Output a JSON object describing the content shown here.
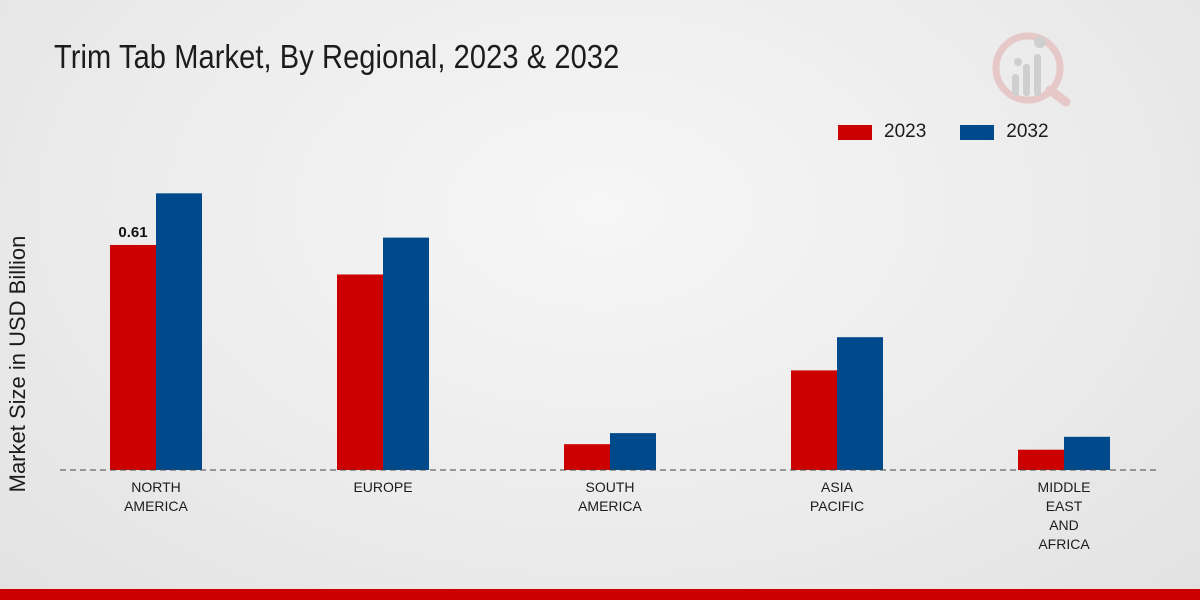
{
  "chart_data": {
    "type": "bar",
    "title": "Trim Tab Market, By Regional, 2023 & 2032",
    "ylabel": "Market Size in USD Billion",
    "xlabel": "",
    "categories": [
      "NORTH\nAMERICA",
      "EUROPE",
      "SOUTH\nAMERICA",
      "ASIA\nPACIFIC",
      "MIDDLE\nEAST\nAND\nAFRICA"
    ],
    "series": [
      {
        "name": "2023",
        "color": "#cc0000",
        "values": [
          0.61,
          0.53,
          0.07,
          0.27,
          0.055
        ]
      },
      {
        "name": "2032",
        "color": "#004a8c",
        "values": [
          0.75,
          0.63,
          0.1,
          0.36,
          0.09
        ]
      }
    ],
    "ylim": [
      0,
      0.9
    ],
    "legend_position": "top-right",
    "data_labels": [
      {
        "series": 0,
        "category": 0,
        "text": "0.61"
      }
    ]
  },
  "legend": {
    "item_2023": "2023",
    "item_2032": "2032"
  }
}
